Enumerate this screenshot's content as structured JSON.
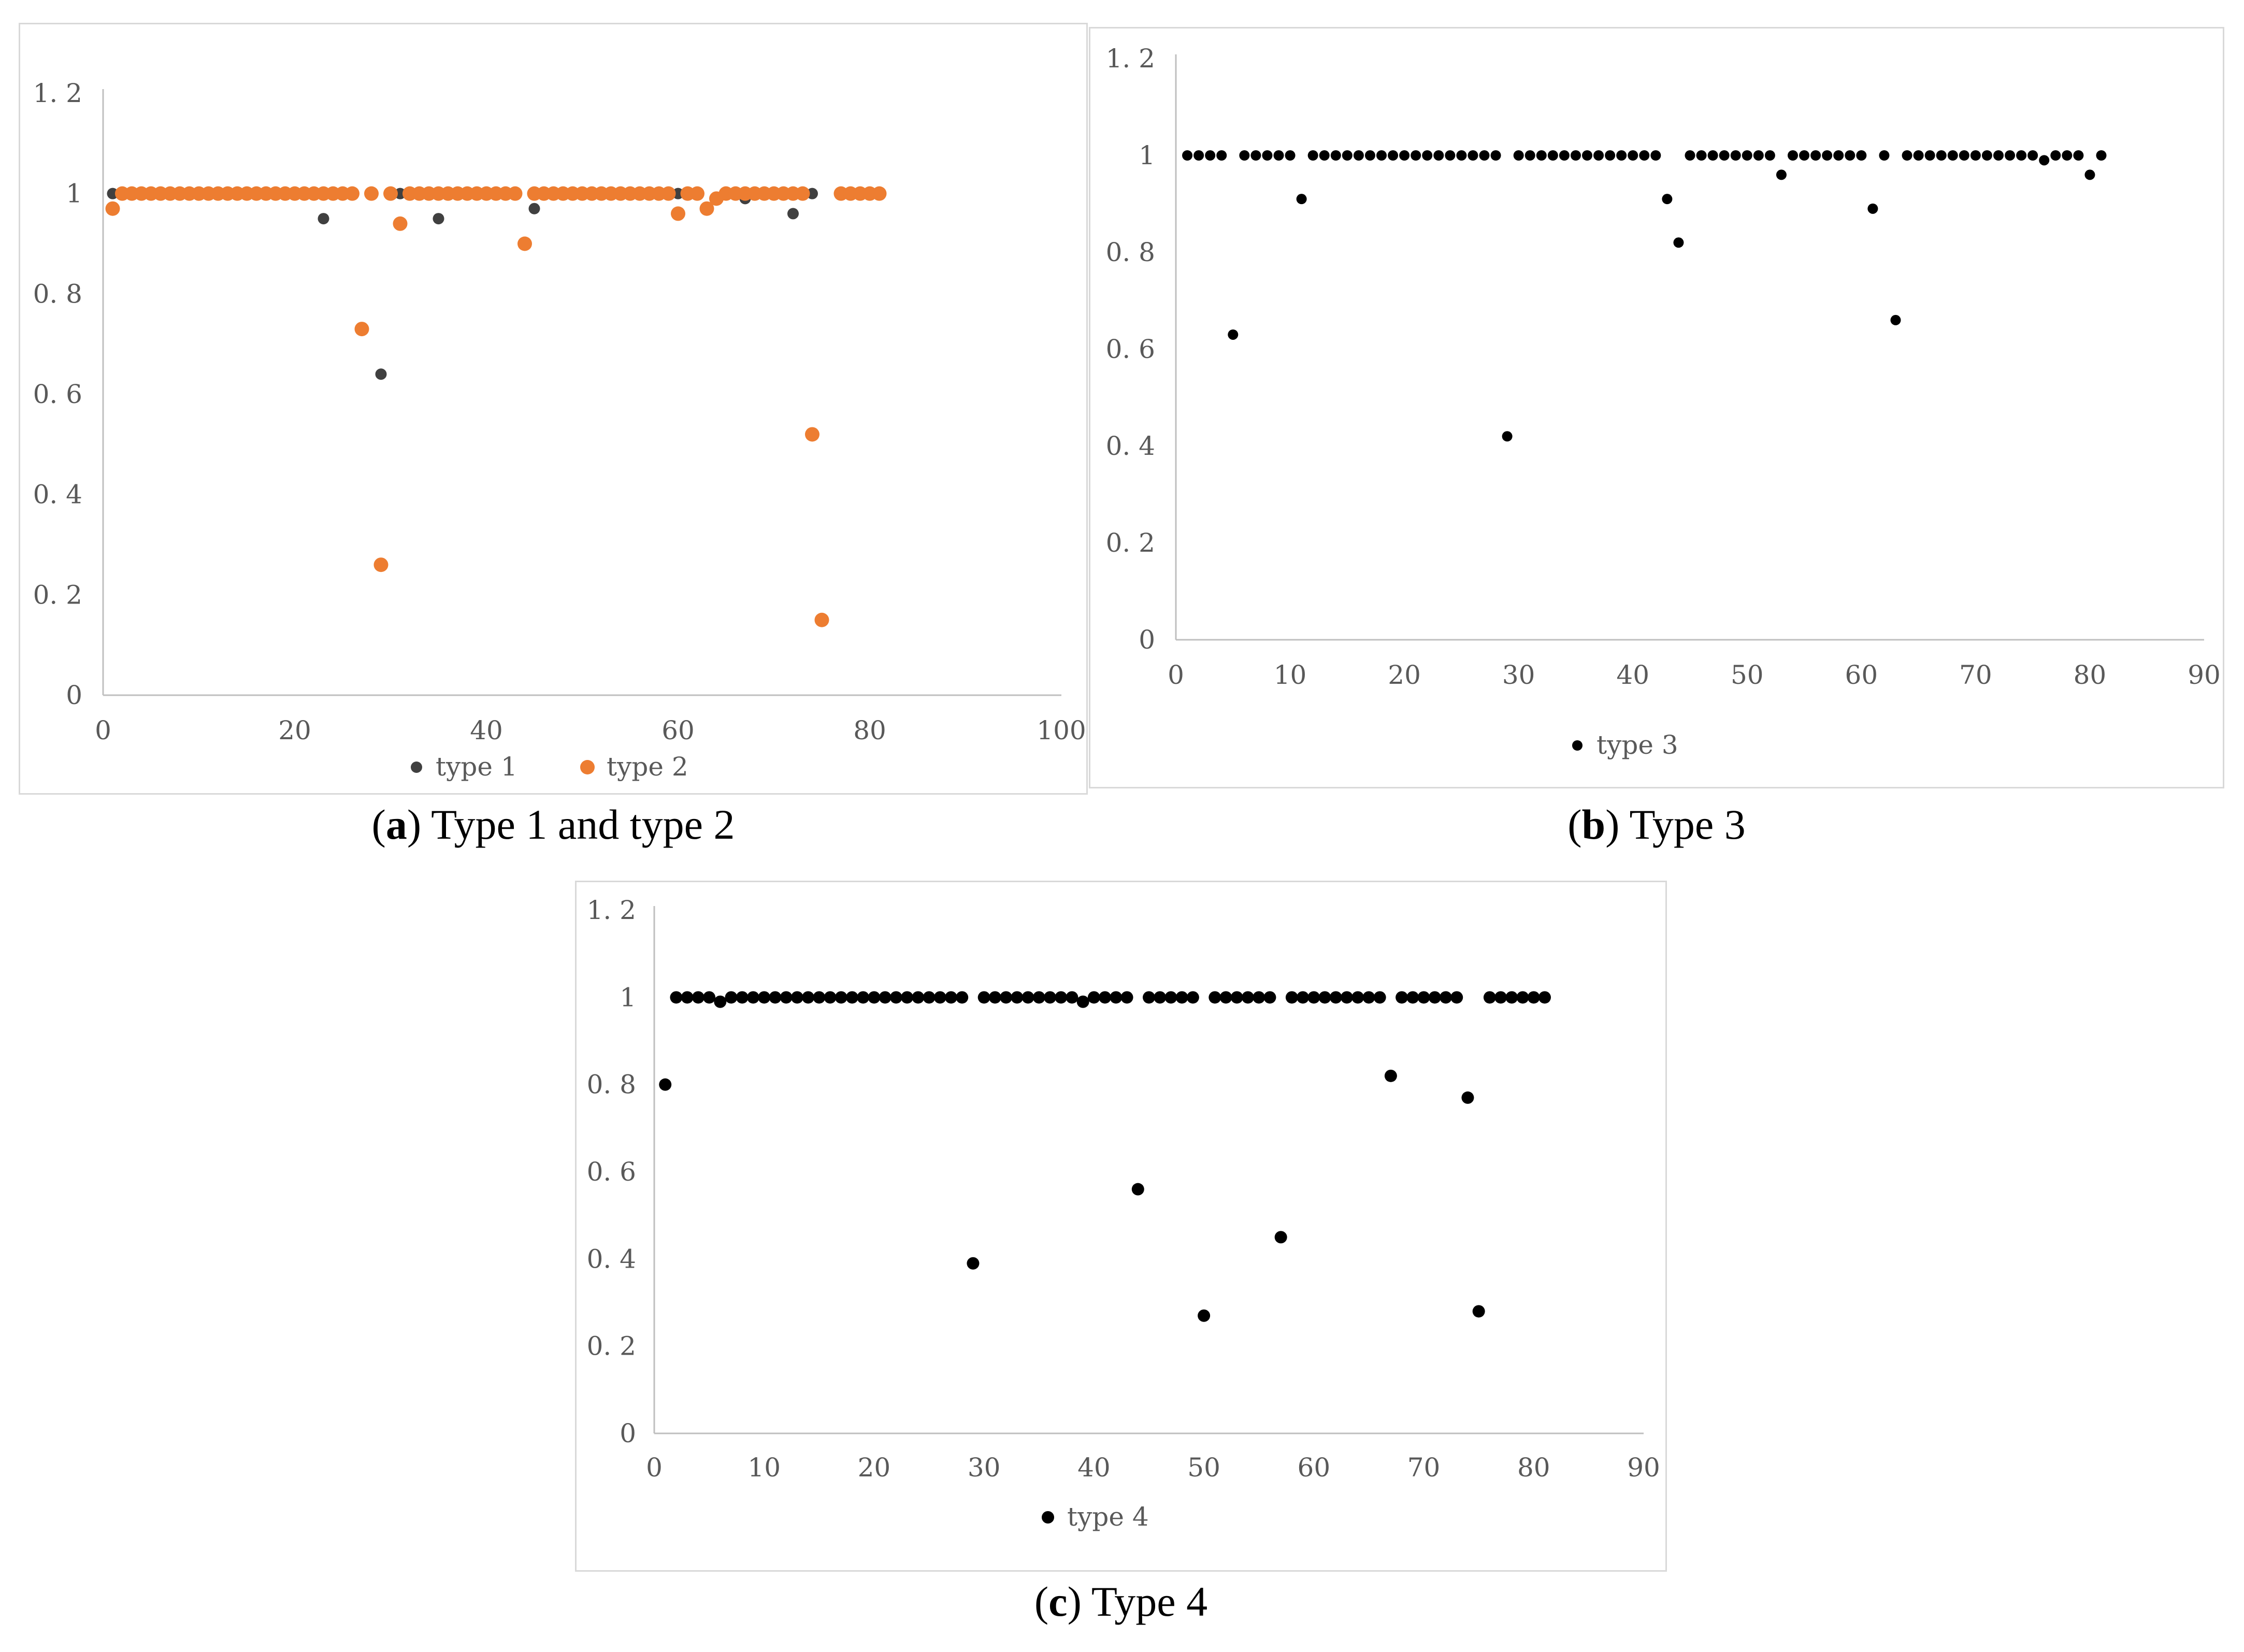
{
  "captions": [
    {
      "letter": "a",
      "text": " Type 1 and type 2"
    },
    {
      "letter": "b",
      "text": " Type 3"
    },
    {
      "letter": "c",
      "text": " Type 4"
    }
  ],
  "chart_data": [
    {
      "type": "scatter",
      "xlim": [
        0,
        100
      ],
      "ylim": [
        0,
        1.2
      ],
      "x_ticks": [
        "0",
        "20",
        "40",
        "60",
        "80",
        "100"
      ],
      "y_ticks": [
        "0",
        "0. 2",
        "0. 4",
        "0. 6",
        "0. 8",
        "1",
        "1. 2"
      ],
      "grid": false,
      "legend": "bottom",
      "series": [
        {
          "name": "type 1",
          "color": "#404040",
          "x": [
            1,
            5,
            23,
            29,
            31,
            35,
            45,
            60,
            67,
            72,
            74
          ],
          "y": [
            1,
            1,
            0.95,
            0.64,
            1,
            0.95,
            0.97,
            1,
            0.99,
            0.96,
            1
          ]
        },
        {
          "name": "type 2",
          "color": "#ED7D31",
          "x": [
            1,
            2,
            3,
            4,
            5,
            6,
            7,
            8,
            9,
            10,
            11,
            12,
            13,
            14,
            15,
            16,
            17,
            18,
            19,
            20,
            21,
            22,
            23,
            24,
            25,
            26,
            27,
            28,
            30,
            31,
            32,
            33,
            34,
            35,
            36,
            37,
            38,
            39,
            40,
            41,
            42,
            43,
            44,
            45,
            46,
            47,
            48,
            49,
            50,
            51,
            52,
            53,
            54,
            55,
            56,
            57,
            58,
            59,
            60,
            61,
            62,
            63,
            64,
            65,
            66,
            67,
            68,
            69,
            70,
            71,
            72,
            73,
            74,
            75,
            77,
            78,
            79,
            80,
            81,
            29
          ],
          "y": [
            0.97,
            1,
            1,
            1,
            1,
            1,
            1,
            1,
            1,
            1,
            1,
            1,
            1,
            1,
            1,
            1,
            1,
            1,
            1,
            1,
            1,
            1,
            1,
            1,
            1,
            1,
            0.73,
            1,
            1,
            0.94,
            1,
            1,
            1,
            1,
            1,
            1,
            1,
            1,
            1,
            1,
            1,
            1,
            0.9,
            1,
            1,
            1,
            1,
            1,
            1,
            1,
            1,
            1,
            1,
            1,
            1,
            1,
            1,
            1,
            0.96,
            1,
            1,
            0.97,
            0.99,
            1,
            1,
            1,
            1,
            1,
            1,
            1,
            1,
            1,
            0.52,
            0.15,
            1,
            1,
            1,
            1,
            1,
            0.26
          ]
        }
      ]
    },
    {
      "type": "scatter",
      "xlim": [
        0,
        90
      ],
      "ylim": [
        0,
        1.2
      ],
      "x_ticks": [
        "0",
        "10",
        "20",
        "30",
        "40",
        "50",
        "60",
        "70",
        "80",
        "90"
      ],
      "y_ticks": [
        "0",
        "0. 2",
        "0. 4",
        "0. 6",
        "0. 8",
        "1",
        "1. 2"
      ],
      "grid": false,
      "legend": "bottom",
      "series": [
        {
          "name": "type 3",
          "color": "#000000",
          "x": [
            1,
            2,
            3,
            4,
            5,
            6,
            7,
            8,
            9,
            10,
            11,
            12,
            13,
            14,
            15,
            16,
            17,
            18,
            19,
            20,
            21,
            22,
            23,
            24,
            25,
            26,
            27,
            28,
            29,
            30,
            31,
            32,
            33,
            34,
            35,
            36,
            37,
            38,
            39,
            40,
            41,
            42,
            43,
            44,
            45,
            46,
            47,
            48,
            49,
            50,
            51,
            52,
            53,
            54,
            55,
            56,
            57,
            58,
            59,
            60,
            61,
            62,
            63,
            64,
            65,
            66,
            67,
            68,
            69,
            70,
            71,
            72,
            73,
            74,
            75,
            76,
            77,
            78,
            79,
            80,
            81
          ],
          "y": [
            1,
            1,
            1,
            1,
            0.63,
            1,
            1,
            1,
            1,
            1,
            0.91,
            1,
            1,
            1,
            1,
            1,
            1,
            1,
            1,
            1,
            1,
            1,
            1,
            1,
            1,
            1,
            1,
            1,
            0.42,
            1,
            1,
            1,
            1,
            1,
            1,
            1,
            1,
            1,
            1,
            1,
            1,
            1,
            0.91,
            0.82,
            1,
            1,
            1,
            1,
            1,
            1,
            1,
            1,
            0.96,
            1,
            1,
            1,
            1,
            1,
            1,
            1,
            0.89,
            1,
            0.66,
            1,
            1,
            1,
            1,
            1,
            1,
            1,
            1,
            1,
            1,
            1,
            1,
            0.99,
            1,
            1,
            1,
            0.96,
            1
          ]
        }
      ]
    },
    {
      "type": "scatter",
      "xlim": [
        0,
        90
      ],
      "ylim": [
        0,
        1.2
      ],
      "x_ticks": [
        "0",
        "10",
        "20",
        "30",
        "40",
        "50",
        "60",
        "70",
        "80",
        "90"
      ],
      "y_ticks": [
        "0",
        "0. 2",
        "0. 4",
        "0. 6",
        "0. 8",
        "1",
        "1. 2"
      ],
      "grid": false,
      "legend": "bottom",
      "series": [
        {
          "name": "type 4",
          "color": "#000000",
          "x": [
            1,
            2,
            3,
            4,
            5,
            6,
            7,
            8,
            9,
            10,
            11,
            12,
            13,
            14,
            15,
            16,
            17,
            18,
            19,
            20,
            21,
            22,
            23,
            24,
            25,
            26,
            27,
            28,
            29,
            30,
            31,
            32,
            33,
            34,
            35,
            36,
            37,
            38,
            39,
            40,
            41,
            42,
            43,
            44,
            45,
            46,
            47,
            48,
            49,
            50,
            51,
            52,
            53,
            54,
            55,
            56,
            57,
            58,
            59,
            60,
            61,
            62,
            63,
            64,
            65,
            66,
            67,
            68,
            69,
            70,
            71,
            72,
            73,
            74,
            75,
            76,
            77,
            78,
            79,
            80,
            81
          ],
          "y": [
            0.8,
            1,
            1,
            1,
            1,
            0.99,
            1,
            1,
            1,
            1,
            1,
            1,
            1,
            1,
            1,
            1,
            1,
            1,
            1,
            1,
            1,
            1,
            1,
            1,
            1,
            1,
            1,
            1,
            0.39,
            1,
            1,
            1,
            1,
            1,
            1,
            1,
            1,
            1,
            0.99,
            1,
            1,
            1,
            1,
            0.56,
            1,
            1,
            1,
            1,
            1,
            0.27,
            1,
            1,
            1,
            1,
            1,
            1,
            0.45,
            1,
            1,
            1,
            1,
            1,
            1,
            1,
            1,
            1,
            0.82,
            1,
            1,
            1,
            1,
            1,
            1,
            0.77,
            0.28,
            1,
            1,
            1,
            1,
            1,
            1
          ]
        }
      ]
    }
  ]
}
